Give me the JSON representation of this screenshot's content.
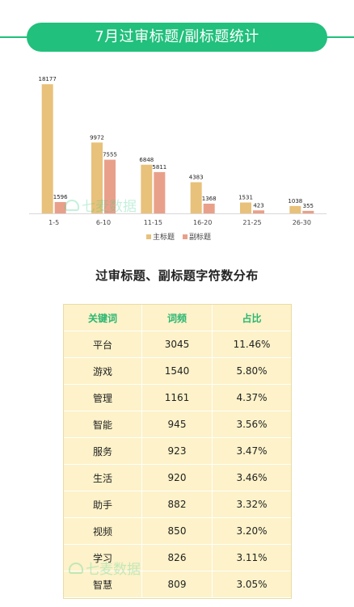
{
  "header": {
    "title": "7月过审标题/副标题统计"
  },
  "watermark": {
    "text": "七麦数据"
  },
  "colors": {
    "accent": "#21c07c",
    "primary_series": "#e8c17a",
    "secondary_series": "#e9a08a",
    "table_bg": "#fdf2c9",
    "table_header_text": "#2bb673"
  },
  "chart_data": {
    "type": "bar",
    "categories": [
      "1-5",
      "6-10",
      "11-15",
      "16-20",
      "21-25",
      "26-30"
    ],
    "series": [
      {
        "name": "主标题",
        "values": [
          18177,
          9972,
          6848,
          4383,
          1531,
          1038
        ]
      },
      {
        "name": "副标题",
        "values": [
          1596,
          7555,
          5811,
          1368,
          423,
          355
        ]
      }
    ],
    "title": "",
    "legend_position": "bottom",
    "ylim": [
      0,
      18200
    ],
    "grid": false
  },
  "table": {
    "title": "过审标题、副标题字符数分布",
    "headers": [
      "关键词",
      "词频",
      "占比"
    ],
    "rows": [
      [
        "平台",
        "3045",
        "11.46%"
      ],
      [
        "游戏",
        "1540",
        "5.80%"
      ],
      [
        "管理",
        "1161",
        "4.37%"
      ],
      [
        "智能",
        "945",
        "3.56%"
      ],
      [
        "服务",
        "923",
        "3.47%"
      ],
      [
        "生活",
        "920",
        "3.46%"
      ],
      [
        "助手",
        "882",
        "3.32%"
      ],
      [
        "视频",
        "850",
        "3.20%"
      ],
      [
        "学习",
        "826",
        "3.11%"
      ],
      [
        "智慧",
        "809",
        "3.05%"
      ]
    ]
  }
}
